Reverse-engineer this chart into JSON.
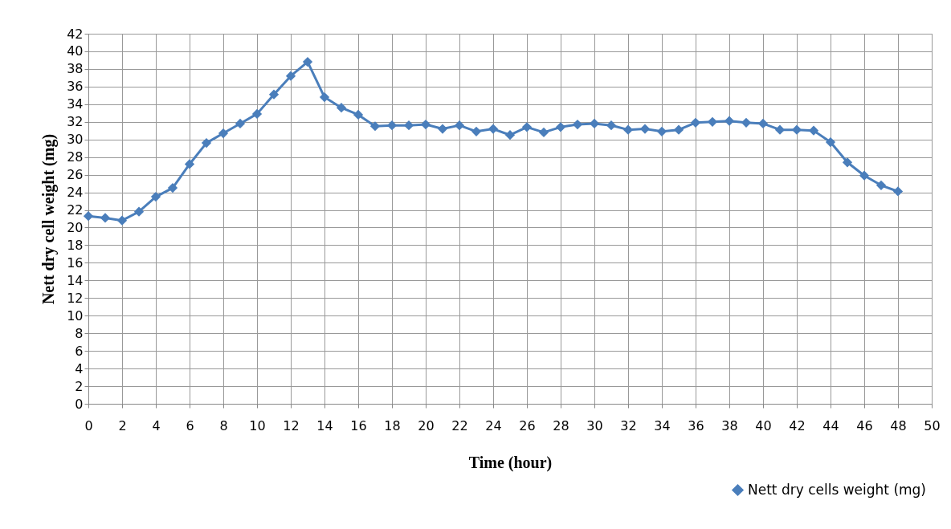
{
  "chart_data": {
    "type": "line",
    "xlabel": "Time (hour)",
    "ylabel": "Nett dry cell weight (mg)",
    "x": [
      0,
      1,
      2,
      3,
      4,
      5,
      6,
      7,
      8,
      9,
      10,
      11,
      12,
      13,
      14,
      15,
      16,
      17,
      18,
      19,
      20,
      21,
      22,
      23,
      24,
      25,
      26,
      27,
      28,
      29,
      30,
      31,
      32,
      33,
      34,
      35,
      36,
      37,
      38,
      39,
      40,
      41,
      42,
      43,
      44,
      45,
      46,
      47,
      48
    ],
    "series": [
      {
        "name": "Nett dry cells weight  (mg)",
        "color": "#4a7ebb",
        "values": [
          21.3,
          21.1,
          20.8,
          21.8,
          23.5,
          24.5,
          27.2,
          29.6,
          30.7,
          31.8,
          32.9,
          35.1,
          37.2,
          38.8,
          34.8,
          33.6,
          32.8,
          31.5,
          31.6,
          31.6,
          31.7,
          31.2,
          31.6,
          30.9,
          31.2,
          30.5,
          31.4,
          30.8,
          31.4,
          31.7,
          31.8,
          31.6,
          31.1,
          31.2,
          30.9,
          31.1,
          31.9,
          32.0,
          32.1,
          31.9,
          31.8,
          31.1,
          31.1,
          31.0,
          29.7,
          27.4,
          25.9,
          24.8,
          24.1
        ]
      }
    ],
    "xlim": [
      0,
      50
    ],
    "xticks": [
      0,
      2,
      4,
      6,
      8,
      10,
      12,
      14,
      16,
      18,
      20,
      22,
      24,
      26,
      28,
      30,
      32,
      34,
      36,
      38,
      40,
      42,
      44,
      46,
      48,
      50
    ],
    "ylim": [
      0,
      42
    ],
    "yticks": [
      0,
      2,
      4,
      6,
      8,
      10,
      12,
      14,
      16,
      18,
      20,
      22,
      24,
      26,
      28,
      30,
      32,
      34,
      36,
      38,
      40,
      42
    ],
    "grid": true,
    "legend": "bottom right",
    "marker": "diamond",
    "line_style": "solid"
  }
}
